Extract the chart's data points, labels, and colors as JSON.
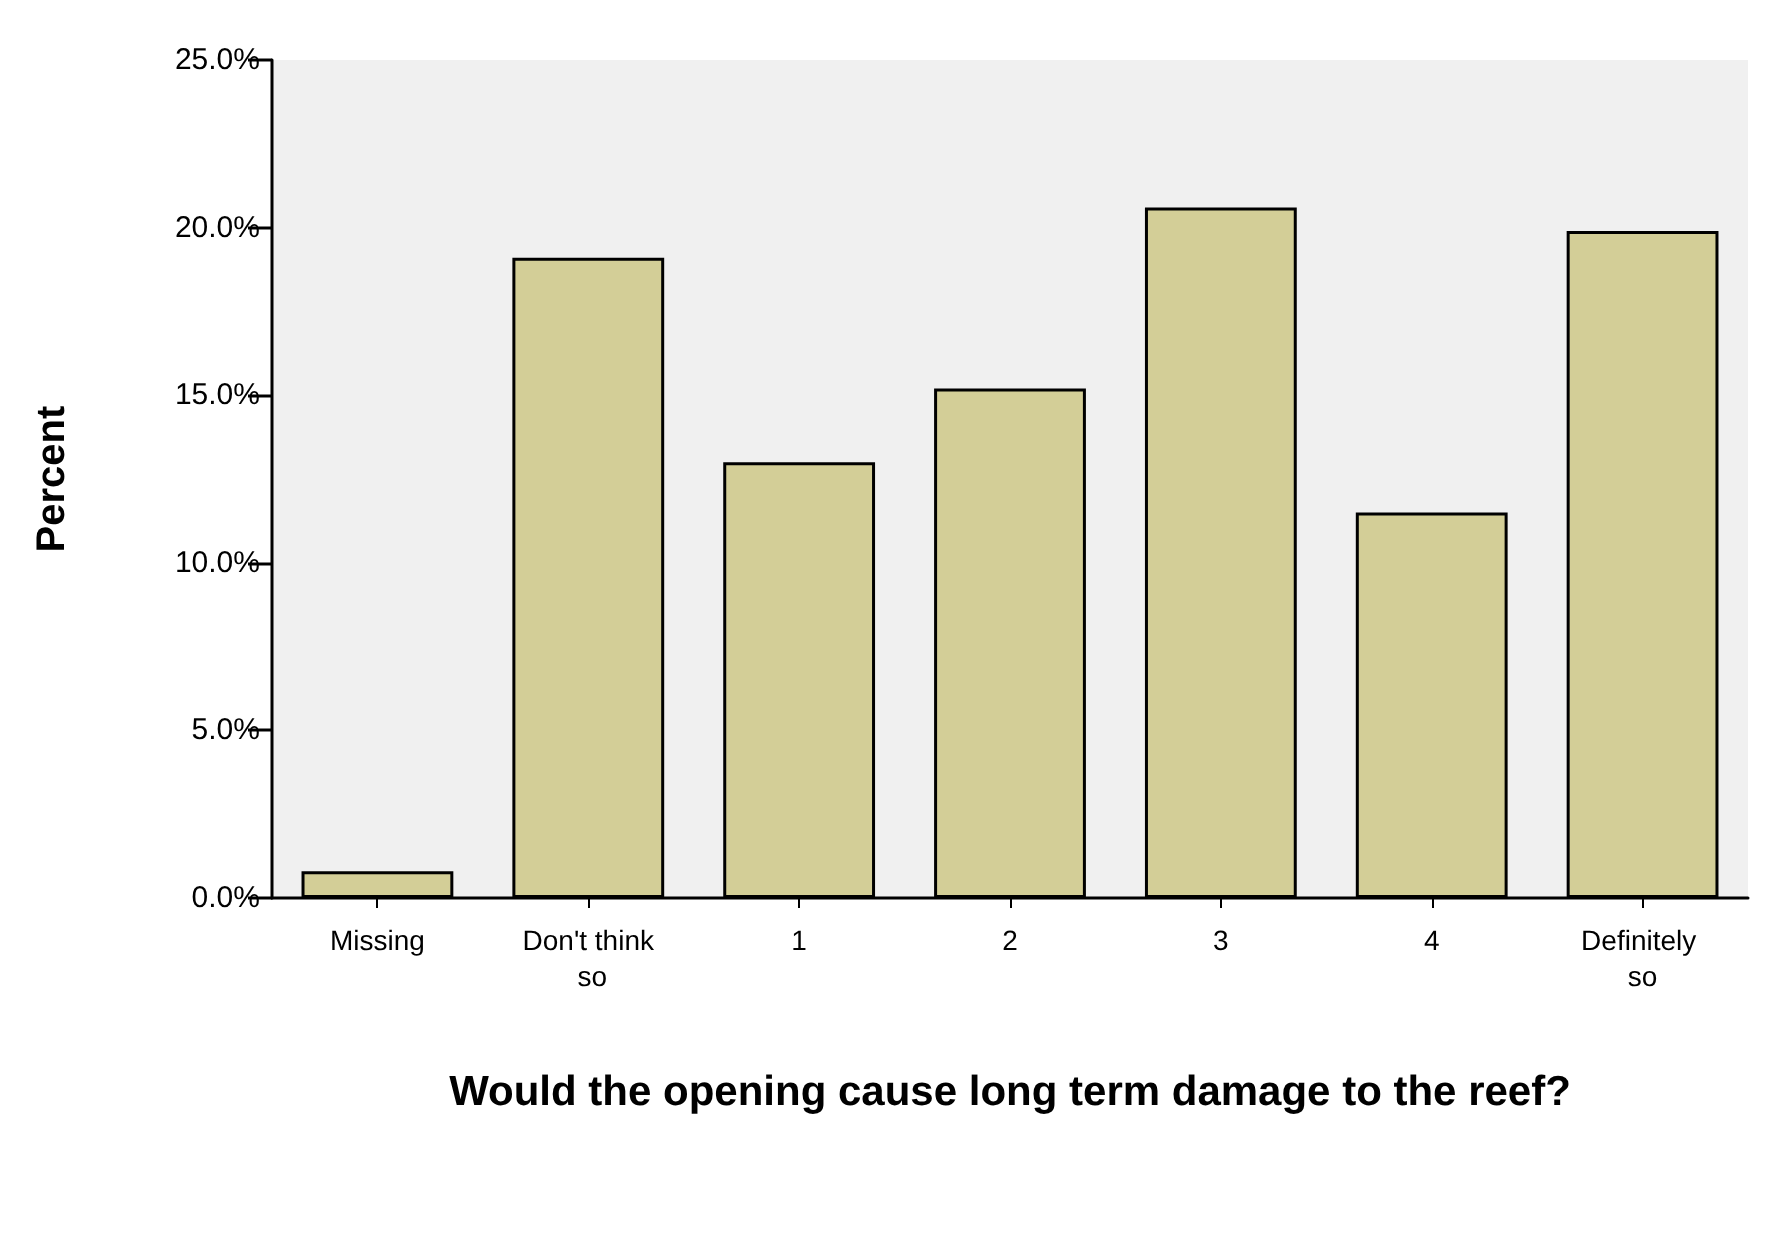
{
  "chart_data": {
    "type": "bar",
    "xlabel": "Would the opening cause long term damage to the reef?",
    "ylabel": "Percent",
    "categories": [
      "Missing",
      "Don't think so",
      "1",
      "2",
      "3",
      "4",
      "Definitely so"
    ],
    "values": [
      0.8,
      19.1,
      13.0,
      15.2,
      20.6,
      11.5,
      19.9
    ],
    "color": "#d3ce97",
    "ylim": [
      0,
      25
    ],
    "yticks": [
      {
        "value": 0,
        "label": "0.0%"
      },
      {
        "value": 5,
        "label": "5.0%"
      },
      {
        "value": 10,
        "label": "10.0%"
      },
      {
        "value": 15,
        "label": "15.0%"
      },
      {
        "value": 20,
        "label": "20.0%"
      },
      {
        "value": 25,
        "label": "25.0%"
      }
    ],
    "grid": false
  }
}
